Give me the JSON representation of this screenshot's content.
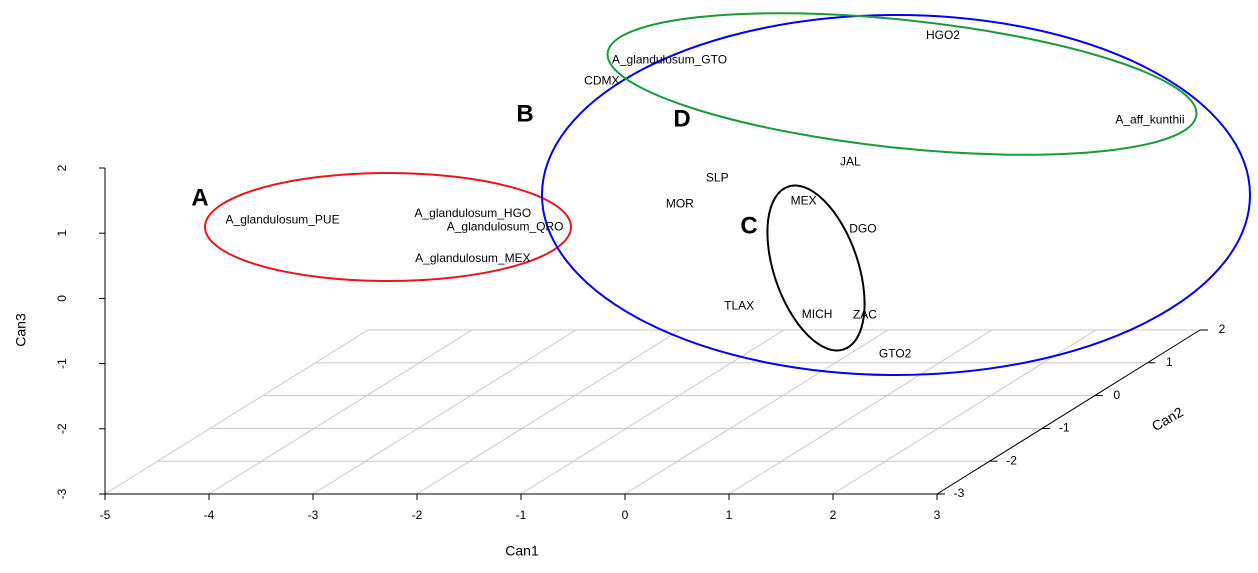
{
  "chart_data": {
    "type": "scatter3d",
    "xlabel": "Can1",
    "ylabel": "Can2",
    "zlabel": "Can3",
    "xlim": [
      -5,
      3
    ],
    "ylim": [
      -3,
      2
    ],
    "zlim": [
      -3,
      2
    ],
    "xticks": [
      -5,
      -4,
      -3,
      -2,
      -1,
      0,
      1,
      2,
      3
    ],
    "yticks": [
      -3,
      -2,
      -1,
      0,
      1,
      2
    ],
    "zticks": [
      -3,
      -2,
      -1,
      0,
      1,
      2
    ],
    "grid": true,
    "labels": [
      "A_glandulosum_PUE",
      "A_glandulosum_HGO",
      "A_glandulosum_QRO",
      "A_glandulosum_MEX",
      "A_glandulosum_GTO",
      "CDMX",
      "HGO2",
      "A_aff_kunthii",
      "JAL",
      "SLP",
      "MOR",
      "MEX",
      "DGO",
      "TLAX",
      "MICH",
      "ZAC",
      "GTO2"
    ],
    "x": [
      -4.81,
      -2.98,
      -2.67,
      -2.98,
      -1.09,
      -1.74,
      1.54,
      3.53,
      0.65,
      -0.63,
      -0.99,
      0.2,
      0.77,
      -0.42,
      0.33,
      0.79,
      1.08
    ],
    "y": [
      0,
      0,
      0,
      0,
      0,
      0,
      0,
      0,
      0,
      0,
      0,
      0,
      0,
      0,
      0,
      0,
      0
    ],
    "z": [
      -0.31,
      -0.21,
      -0.42,
      -0.9,
      2.14,
      1.82,
      2.52,
      1.22,
      0.58,
      0.33,
      -0.07,
      -0.02,
      -0.45,
      -1.63,
      -1.76,
      -1.77,
      -2.37
    ],
    "groups": [
      "A",
      "B",
      "C",
      "D"
    ]
  }
}
